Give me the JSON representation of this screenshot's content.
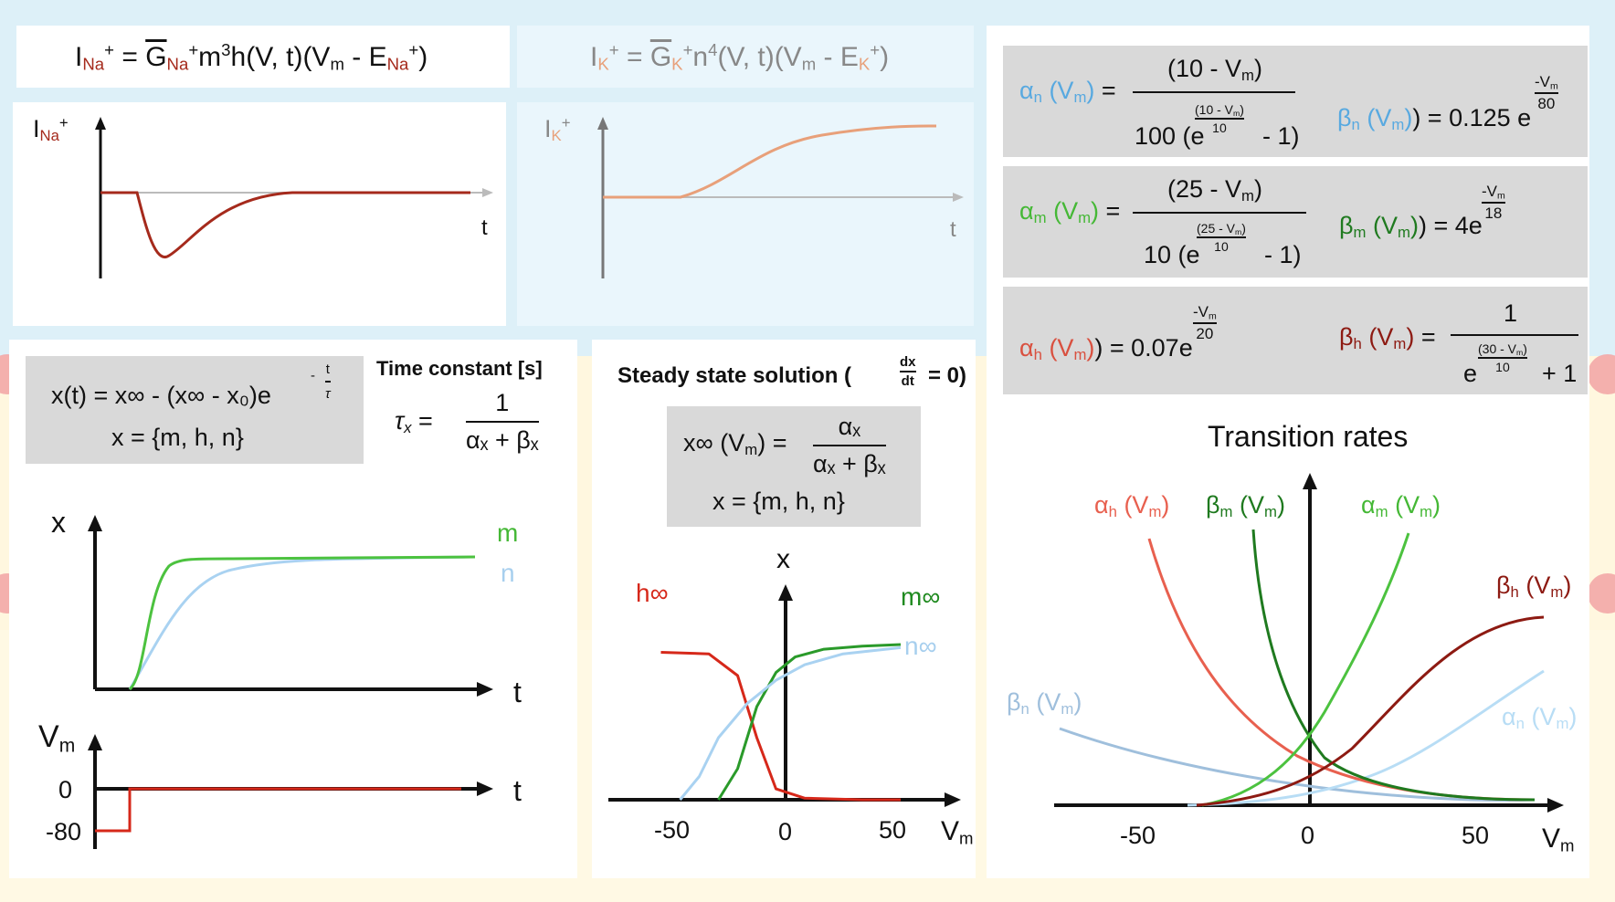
{
  "colors": {
    "alpha_n": "#58a9e0",
    "beta_n": "#8bb3d9",
    "alpha_m": "#45b836",
    "beta_m": "#1f7a1f",
    "alpha_h": "#e8604f",
    "beta_h": "#8d1a12",
    "na_current": "#a52a1c",
    "k_current": "#e8a07a",
    "m_curve": "#4cc23f",
    "n_curve": "#a9d2f1"
  },
  "equations": {
    "ina": "I_Na+ = G_Na+ m³h(V, t)(V_m - E_Na+)",
    "ik": "I_K+ = G_K+ n⁴(V, t)(V_m - E_K+)"
  },
  "current_plots": {
    "na_ylabel": "I",
    "na_ysub": "Na",
    "na_ysup": "+",
    "k_ylabel": "I",
    "k_ysub": "K",
    "k_ysup": "+",
    "xlabel": "t"
  },
  "gating_solution": {
    "line1": "x(t) = x∞ - (x∞ - x₀)e",
    "exp_num": "t",
    "exp_den": "τ",
    "exp_sign": "-",
    "line2": "x = {m, h, n}"
  },
  "time_constant": {
    "title": "Time constant [s]",
    "lhs": "τ",
    "lhs_sub": "x",
    "eq": "=",
    "num": "1",
    "den": "αₓ + βₓ"
  },
  "steady_state": {
    "title": "Steady state solution (",
    "title_end": "= 0)",
    "frac_num": "dx",
    "frac_den": "dt",
    "lhs": "x∞ (V",
    "lhs_sub": "m",
    "lhs_end": ") =",
    "num": "αₓ",
    "den": "αₓ + βₓ",
    "line2": "x = {m, h, n}"
  },
  "rates": {
    "alpha_n": {
      "label": "α",
      "sub": "n",
      "paren": "(V",
      "psub": "m",
      "end": ") =",
      "num": "(10 - V",
      "num_sub": "m",
      "num_end": ")",
      "den_pre": "100 (e",
      "den_exp": "(10 - V",
      "den_exp_sub": "m",
      "den_exp_end": ")",
      "den_exp_den": "10",
      "den_post": "- 1)"
    },
    "beta_n": {
      "label": "β",
      "sub": "n",
      "paren": "(V",
      "psub": "m",
      "end": ") = 0.125 e",
      "exp_num": "-V",
      "exp_num_sub": "m",
      "exp_den": "80"
    },
    "alpha_m": {
      "label": "α",
      "sub": "m",
      "paren": "(V",
      "psub": "m",
      "end": ") =",
      "num": "(25 - V",
      "num_sub": "m",
      "num_end": ")",
      "den_pre": "10 (e",
      "den_exp": "(25 - V",
      "den_exp_sub": "m",
      "den_exp_end": ")",
      "den_exp_den": "10",
      "den_post": "- 1)"
    },
    "beta_m": {
      "label": "β",
      "sub": "m",
      "paren": "(V",
      "psub": "m",
      "end": ") = 4e",
      "exp_num": "-V",
      "exp_num_sub": "m",
      "exp_den": "18"
    },
    "alpha_h": {
      "label": "α",
      "sub": "h",
      "paren": "(V",
      "psub": "m",
      "end": ") = 0.07e",
      "exp_num": "-V",
      "exp_num_sub": "m",
      "exp_den": "20"
    },
    "beta_h": {
      "label": "β",
      "sub": "h",
      "paren": "(V",
      "psub": "m",
      "end": ") =",
      "num": "1",
      "den_pre": "e",
      "den_exp": "(30 - V",
      "den_exp_sub": "m",
      "den_exp_end": ")",
      "den_exp_den": "10",
      "den_post": "+ 1"
    }
  },
  "gating_plot": {
    "ylabel": "x",
    "xlabel": "t",
    "m_label": "m",
    "n_label": "n"
  },
  "voltage_plot": {
    "ylabel": "V",
    "ylabel_sub": "m",
    "xlabel": "t",
    "ticks": [
      "0",
      "-80"
    ]
  },
  "steady_plot": {
    "ylabel": "x",
    "xlabel": "V",
    "xlabel_sub": "m",
    "h_label": "h∞",
    "m_label": "m∞",
    "n_label": "n∞",
    "xticks": [
      "-50",
      "0",
      "50"
    ]
  },
  "transition_plot": {
    "title": "Transition rates",
    "xlabel": "V",
    "xlabel_sub": "m",
    "xticks": [
      "-50",
      "0",
      "50"
    ],
    "labels": {
      "alpha_h": {
        "t": "α",
        "s": "h",
        "p": "(V",
        "ps": "m",
        "e": ")"
      },
      "beta_m": {
        "t": "β",
        "s": "m",
        "p": "(V",
        "ps": "m",
        "e": ")"
      },
      "alpha_m": {
        "t": "α",
        "s": "m",
        "p": "(V",
        "ps": "m",
        "e": ")"
      },
      "beta_h": {
        "t": "β",
        "s": "h",
        "p": "(V",
        "ps": "m",
        "e": ")"
      },
      "beta_n": {
        "t": "β",
        "s": "n",
        "p": "(V",
        "ps": "m",
        "e": ")"
      },
      "alpha_n": {
        "t": "α",
        "s": "n",
        "p": "(V",
        "ps": "m",
        "e": ")"
      }
    }
  },
  "chart_data": [
    {
      "type": "line",
      "series": [
        {
          "name": "m",
          "x": [
            0,
            0.05,
            0.1,
            0.15,
            0.2,
            0.3,
            0.5,
            0.8,
            1
          ],
          "y": [
            0,
            0.1,
            0.55,
            0.85,
            0.97,
            1,
            1,
            1,
            1
          ]
        },
        {
          "name": "n",
          "x": [
            0,
            0.1,
            0.2,
            0.3,
            0.4,
            0.6,
            0.8,
            1
          ],
          "y": [
            0,
            0.25,
            0.55,
            0.75,
            0.88,
            0.97,
            0.99,
            1
          ]
        }
      ],
      "xlabel": "t",
      "ylabel": "x"
    },
    {
      "type": "line",
      "series": [
        {
          "name": "h∞",
          "x": [
            -65,
            -40,
            -25,
            -15,
            -5,
            10,
            40,
            60
          ],
          "y": [
            0.95,
            0.94,
            0.8,
            0.4,
            0.07,
            0.01,
            0,
            0
          ]
        },
        {
          "name": "m∞",
          "x": [
            -35,
            -25,
            -15,
            -5,
            5,
            20,
            40,
            60
          ],
          "y": [
            0,
            0.2,
            0.6,
            0.82,
            0.92,
            0.97,
            0.99,
            1
          ]
        },
        {
          "name": "n∞",
          "x": [
            -55,
            -45,
            -35,
            -20,
            -5,
            10,
            30,
            60
          ],
          "y": [
            0,
            0.15,
            0.4,
            0.62,
            0.77,
            0.87,
            0.94,
            0.98
          ]
        }
      ],
      "xlabel": "V_m",
      "ylabel": "x",
      "xlim": [
        -70,
        70
      ]
    }
  ]
}
